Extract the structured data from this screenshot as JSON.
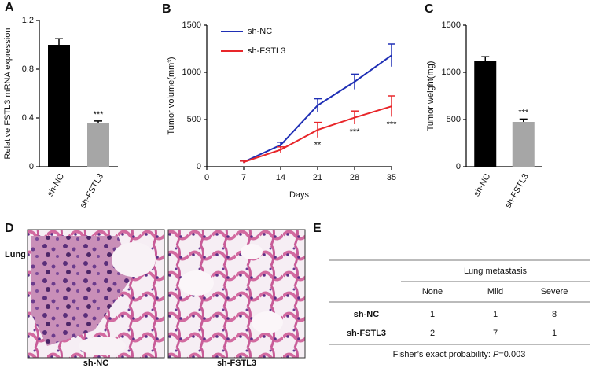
{
  "chart_data": [
    {
      "type": "bar",
      "panel": "A",
      "ylabel": "Relative FSTL3 mRNA expression",
      "categories": [
        "sh-NC",
        "sh-FSTL3"
      ],
      "values": [
        1.0,
        0.36
      ],
      "errors": [
        0.05,
        0.015
      ],
      "colors": [
        "#000000",
        "#a6a6a6"
      ],
      "ylim": [
        0,
        1.2
      ],
      "yticks": [
        0,
        0.4,
        0.8,
        1.2
      ],
      "annotations": [
        {
          "text": "***",
          "category": "sh-FSTL3"
        }
      ]
    },
    {
      "type": "line",
      "panel": "B",
      "ylabel": "Tumor volume(mm³)",
      "xlabel": "Days",
      "x": [
        7,
        14,
        21,
        28,
        35
      ],
      "xlim": [
        0,
        35
      ],
      "xticks": [
        0,
        7,
        14,
        21,
        28,
        35
      ],
      "ylim": [
        0,
        1500
      ],
      "yticks": [
        0,
        500,
        1000,
        1500
      ],
      "legend": "upper left",
      "series": [
        {
          "name": "sh-NC",
          "color": "#1f2fb5",
          "values": [
            50,
            230,
            650,
            900,
            1180
          ],
          "errors": [
            10,
            30,
            70,
            80,
            120
          ]
        },
        {
          "name": "sh-FSTL3",
          "color": "#e8262a",
          "values": [
            50,
            180,
            390,
            520,
            640
          ],
          "errors": [
            10,
            30,
            80,
            70,
            110
          ]
        }
      ],
      "annotations": [
        {
          "text": "**",
          "x": 21
        },
        {
          "text": "***",
          "x": 28
        },
        {
          "text": "***",
          "x": 35
        }
      ]
    },
    {
      "type": "bar",
      "panel": "C",
      "ylabel": "Tumor weight(mg)",
      "categories": [
        "sh-NC",
        "sh-FSTL3"
      ],
      "values": [
        1120,
        475
      ],
      "errors": [
        45,
        30
      ],
      "colors": [
        "#000000",
        "#a6a6a6"
      ],
      "ylim": [
        0,
        1500
      ],
      "yticks": [
        0,
        500,
        1000,
        1500
      ],
      "annotations": [
        {
          "text": "***",
          "category": "sh-FSTL3"
        }
      ]
    }
  ],
  "histology": {
    "panel": "D",
    "tissue": "Lung",
    "captions": [
      "sh-NC",
      "sh-FSTL3"
    ]
  },
  "table": {
    "panel": "E",
    "group_header": "Lung metastasis",
    "columns": [
      "None",
      "Mild",
      "Severe"
    ],
    "rows": [
      [
        "sh-NC",
        "1",
        "1",
        "8"
      ],
      [
        "sh-FSTL3",
        "2",
        "7",
        "1"
      ]
    ],
    "footnote": [
      "Fisher’s exact probability: ",
      "P",
      "=0.003"
    ]
  }
}
